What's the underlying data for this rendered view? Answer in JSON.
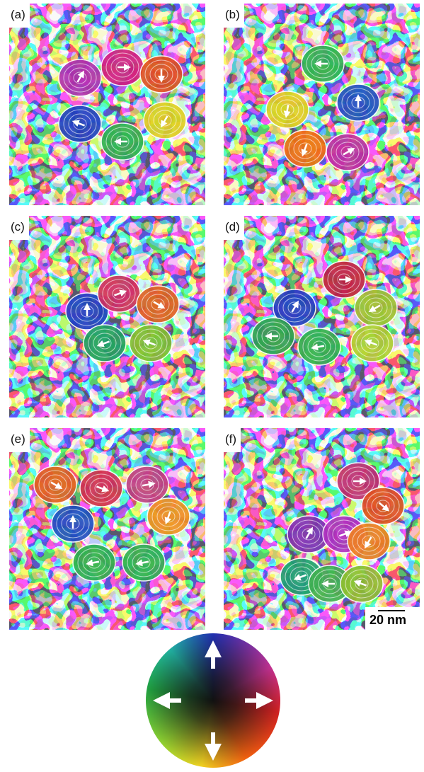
{
  "panels": [
    {
      "label": "(a)"
    },
    {
      "label": "(b)"
    },
    {
      "label": "(c)"
    },
    {
      "label": "(d)"
    },
    {
      "label": "(e)"
    },
    {
      "label": "(f)"
    }
  ],
  "scale_bar": {
    "label": "20 nm"
  }
}
